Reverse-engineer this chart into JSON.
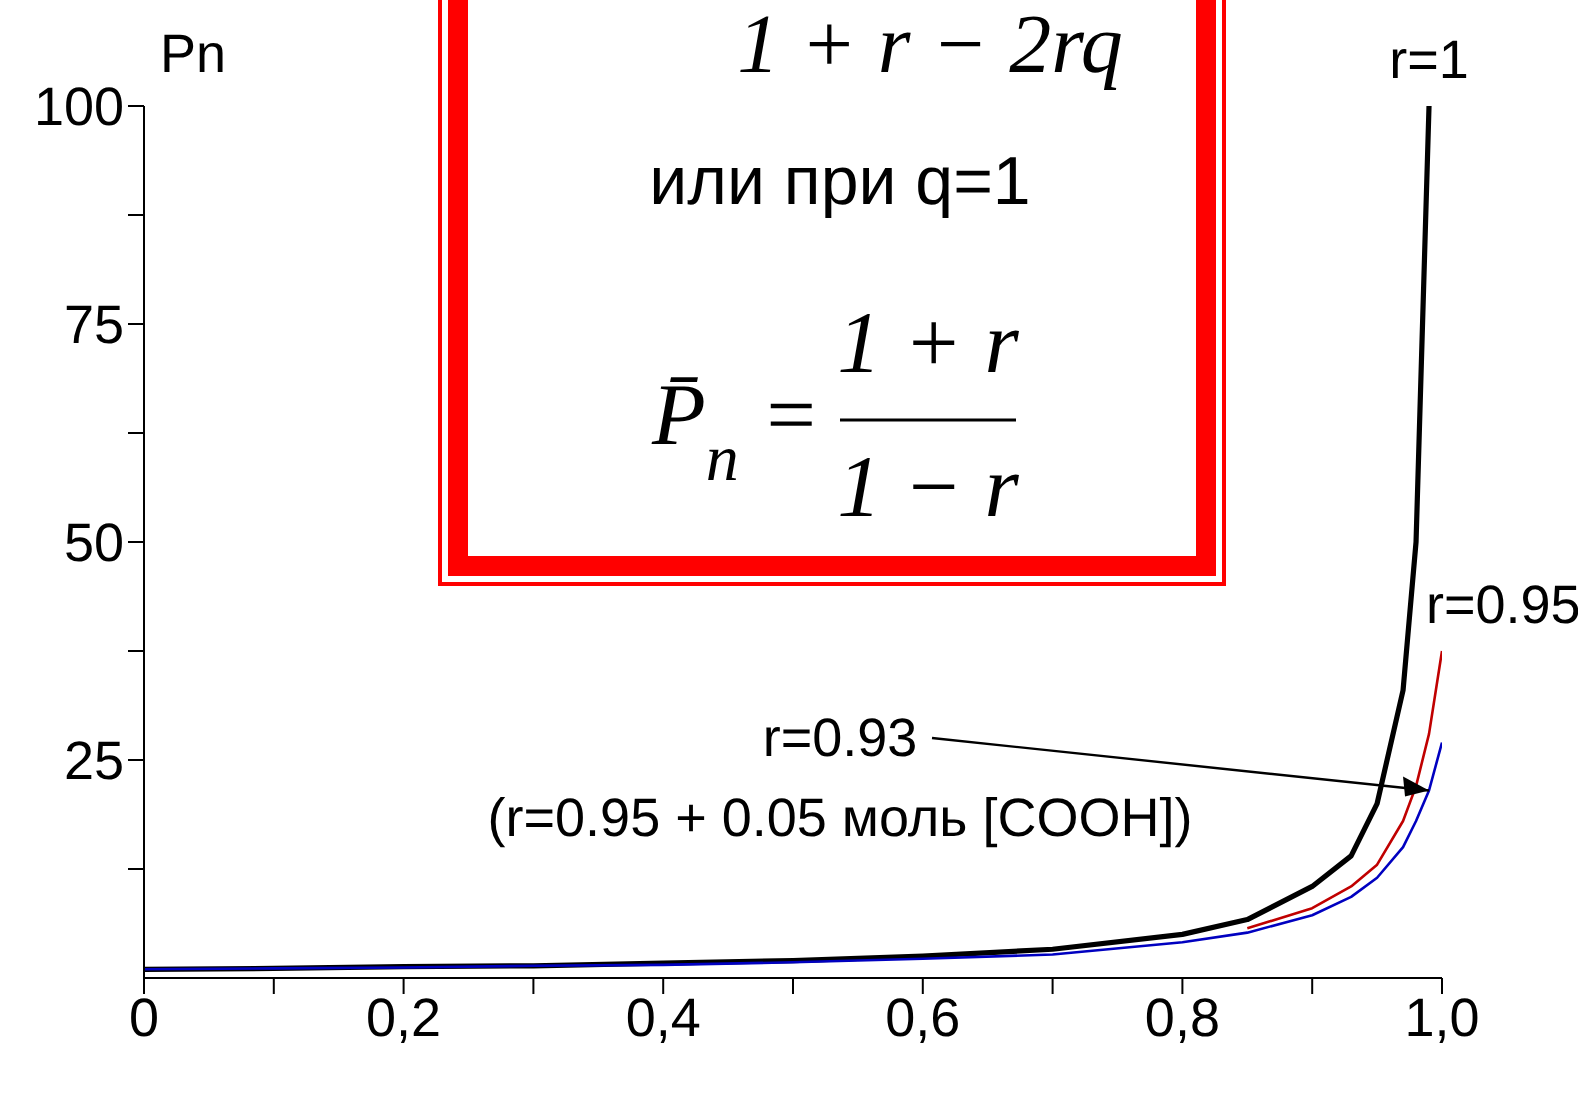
{
  "chart_data": {
    "type": "line",
    "ylabel": "Pn",
    "series": [
      {
        "name": "r=1",
        "color": "#000000",
        "x": [
          0,
          0.1,
          0.2,
          0.3,
          0.4,
          0.5,
          0.6,
          0.7,
          0.8,
          0.85,
          0.9,
          0.93,
          0.95,
          0.97,
          0.98,
          0.99
        ],
        "values": [
          1,
          1.1,
          1.3,
          1.4,
          1.7,
          2,
          2.5,
          3.3,
          5,
          6.7,
          10.5,
          14,
          20,
          33,
          50,
          100
        ]
      },
      {
        "name": "r=0.95",
        "color": "#c00000",
        "x": [
          0.85,
          0.9,
          0.93,
          0.95,
          0.97,
          0.98,
          0.99,
          1.0
        ],
        "values": [
          5.7,
          8,
          10.5,
          13,
          18,
          22,
          28,
          37.5
        ]
      },
      {
        "color": "#0000c0",
        "x": [
          0,
          0.1,
          0.2,
          0.3,
          0.4,
          0.5,
          0.6,
          0.7,
          0.8,
          0.85,
          0.9,
          0.93,
          0.95,
          0.97,
          0.98,
          0.99,
          1.0
        ],
        "values": [
          1,
          1.1,
          1.2,
          1.4,
          1.5,
          1.8,
          2.2,
          2.7,
          4.1,
          5.2,
          7.2,
          9.3,
          11.5,
          15,
          18,
          21.5,
          27
        ]
      }
    ],
    "xlim": [
      0,
      1.0
    ],
    "xticks": [
      0,
      {
        "value": 0.1,
        "label": null
      },
      {
        "value": 0.2,
        "label": "0,2"
      },
      {
        "value": 0.3,
        "label": null
      },
      {
        "value": 0.4,
        "label": "0,4"
      },
      {
        "value": 0.5,
        "label": null
      },
      {
        "value": 0.6,
        "label": "0,6"
      },
      {
        "value": 0.7,
        "label": null
      },
      {
        "value": 0.8,
        "label": "0,8"
      },
      {
        "value": 0.9,
        "label": null
      },
      {
        "value": 1.0,
        "label": "1,0"
      }
    ],
    "ylim": [
      0,
      100
    ],
    "yticks": [
      {
        "value": 12.5,
        "label": null
      },
      25,
      {
        "value": 37.5,
        "label": null
      },
      50,
      {
        "value": 62.5,
        "label": null
      },
      75,
      {
        "value": 87.5,
        "label": null
      },
      100
    ],
    "line_style": "solid",
    "annotations": [
      "1 + r − 2rq",
      "или при q=1",
      "P̄$_{n}$ =",
      "1 + r",
      "1 − r",
      {
        "text": "r=0.93",
        "x": 0.99,
        "y": 21.5
      },
      "(r=0.95 + 0.05 моль [COOH])"
    ]
  }
}
